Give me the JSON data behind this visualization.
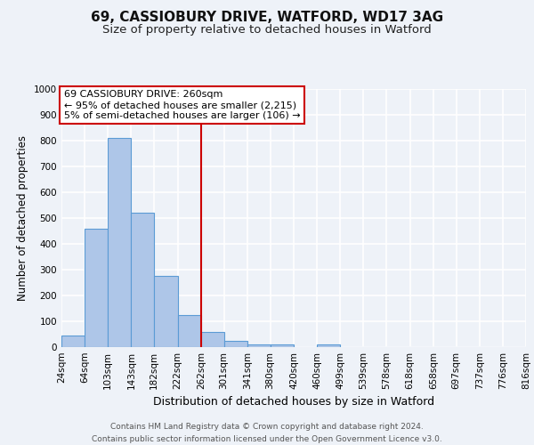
{
  "title1": "69, CASSIOBURY DRIVE, WATFORD, WD17 3AG",
  "title2": "Size of property relative to detached houses in Watford",
  "xlabel": "Distribution of detached houses by size in Watford",
  "ylabel": "Number of detached properties",
  "bins": [
    24,
    64,
    103,
    143,
    182,
    222,
    262,
    301,
    341,
    380,
    420,
    460,
    499,
    539,
    578,
    618,
    658,
    697,
    737,
    776,
    816
  ],
  "bin_labels": [
    "24sqm",
    "64sqm",
    "103sqm",
    "143sqm",
    "182sqm",
    "222sqm",
    "262sqm",
    "301sqm",
    "341sqm",
    "380sqm",
    "420sqm",
    "460sqm",
    "499sqm",
    "539sqm",
    "578sqm",
    "618sqm",
    "658sqm",
    "697sqm",
    "737sqm",
    "776sqm",
    "816sqm"
  ],
  "values": [
    45,
    460,
    810,
    520,
    275,
    125,
    60,
    25,
    10,
    12,
    0,
    10,
    0,
    0,
    0,
    0,
    0,
    0,
    0,
    0
  ],
  "bar_color": "#aec6e8",
  "bar_edge_color": "#5b9bd5",
  "property_line_x": 262,
  "property_line_color": "#cc0000",
  "annotation_text": "69 CASSIOBURY DRIVE: 260sqm\n← 95% of detached houses are smaller (2,215)\n5% of semi-detached houses are larger (106) →",
  "annotation_box_color": "#ffffff",
  "annotation_box_edge_color": "#cc0000",
  "ylim": [
    0,
    1000
  ],
  "yticks": [
    0,
    100,
    200,
    300,
    400,
    500,
    600,
    700,
    800,
    900,
    1000
  ],
  "background_color": "#eef2f8",
  "grid_color": "#ffffff",
  "footer_text": "Contains HM Land Registry data © Crown copyright and database right 2024.\nContains public sector information licensed under the Open Government Licence v3.0.",
  "title1_fontsize": 11,
  "title2_fontsize": 9.5,
  "xlabel_fontsize": 9,
  "ylabel_fontsize": 8.5,
  "tick_fontsize": 7.5,
  "annotation_fontsize": 8,
  "footer_fontsize": 6.5
}
